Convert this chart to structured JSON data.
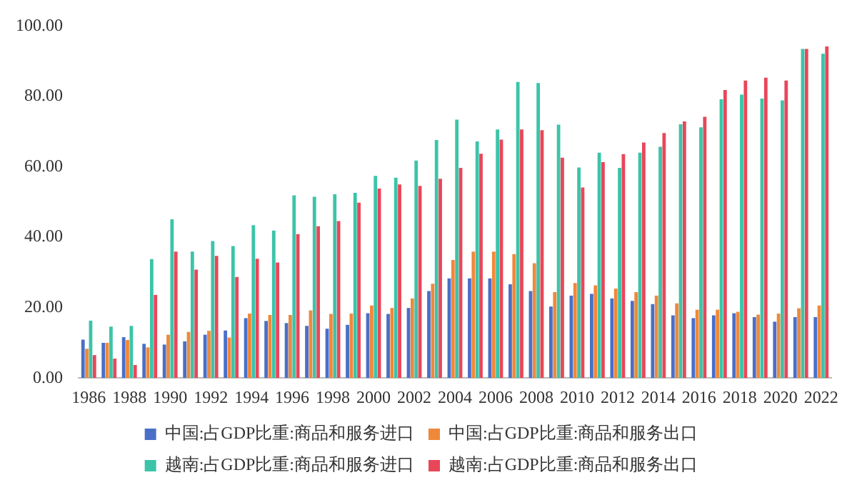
{
  "chart_data": {
    "type": "bar",
    "categories": [
      "1986",
      null,
      "1988",
      null,
      "1990",
      null,
      "1992",
      null,
      "1994",
      null,
      "1996",
      null,
      "1998",
      null,
      "2000",
      null,
      "2002",
      null,
      "2004",
      null,
      "2006",
      null,
      "2008",
      null,
      "2010",
      null,
      "2012",
      null,
      "2014",
      null,
      "2016",
      null,
      "2018",
      null,
      "2020",
      null,
      "2022"
    ],
    "series": [
      {
        "name": "中国:占GDP比重:商品和服务进口",
        "color": "#4a6fc7",
        "values": [
          10.9,
          10.0,
          11.6,
          9.7,
          9.5,
          10.4,
          12.3,
          13.5,
          17.0,
          16.2,
          15.6,
          14.8,
          14.0,
          15.1,
          18.4,
          18.2,
          19.9,
          24.7,
          28.3,
          28.3,
          28.3,
          26.6,
          24.7,
          20.3,
          23.4,
          23.9,
          22.6,
          21.9,
          21.0,
          17.8,
          17.0,
          17.8,
          18.4,
          17.3,
          16.0,
          17.3,
          17.3
        ]
      },
      {
        "name": "中国:占GDP比重:商品和服务出口",
        "color": "#f0883a",
        "values": [
          8.3,
          10.0,
          10.8,
          8.7,
          12.3,
          13.1,
          13.4,
          11.5,
          18.3,
          17.9,
          17.9,
          19.2,
          18.2,
          18.3,
          20.6,
          19.9,
          22.6,
          26.8,
          33.5,
          35.9,
          35.9,
          35.2,
          32.6,
          24.4,
          27.0,
          26.3,
          25.4,
          24.4,
          23.4,
          21.2,
          19.4,
          19.4,
          18.8,
          18.0,
          18.3,
          19.8,
          20.6
        ]
      },
      {
        "name": "越南:占GDP比重:商品和服务进口",
        "color": "#3cc4a8",
        "values": [
          16.3,
          14.6,
          14.8,
          33.8,
          45.1,
          35.9,
          38.9,
          37.5,
          43.4,
          41.9,
          51.9,
          51.5,
          52.2,
          52.6,
          57.4,
          56.9,
          61.8,
          67.6,
          73.4,
          67.2,
          70.6,
          84.1,
          83.8,
          72.0,
          59.8,
          64.0,
          59.7,
          64.0,
          65.7,
          72.1,
          71.2,
          79.2,
          80.5,
          79.4,
          78.9,
          93.5,
          92.1
        ]
      },
      {
        "name": "越南:占GDP比重:商品和服务出口",
        "color": "#e8475a",
        "values": [
          6.5,
          5.5,
          3.7,
          23.6,
          35.9,
          30.8,
          34.7,
          28.7,
          33.9,
          32.8,
          40.9,
          43.1,
          44.6,
          49.8,
          53.8,
          55.0,
          54.6,
          56.6,
          59.7,
          63.7,
          67.7,
          70.6,
          70.4,
          62.6,
          54.1,
          61.3,
          63.6,
          66.9,
          69.6,
          72.9,
          74.2,
          81.8,
          84.5,
          85.3,
          84.5,
          93.5,
          94.2
        ]
      }
    ],
    "ylim": [
      0,
      100
    ],
    "yticks": [
      {
        "value": 0,
        "label": "0.00"
      },
      {
        "value": 20,
        "label": "20.00"
      },
      {
        "value": 40,
        "label": "40.00"
      },
      {
        "value": 60,
        "label": "60.00"
      },
      {
        "value": 80,
        "label": "80.00"
      },
      {
        "value": 100,
        "label": "100.00"
      }
    ],
    "grid": false,
    "legend": "bottom"
  }
}
